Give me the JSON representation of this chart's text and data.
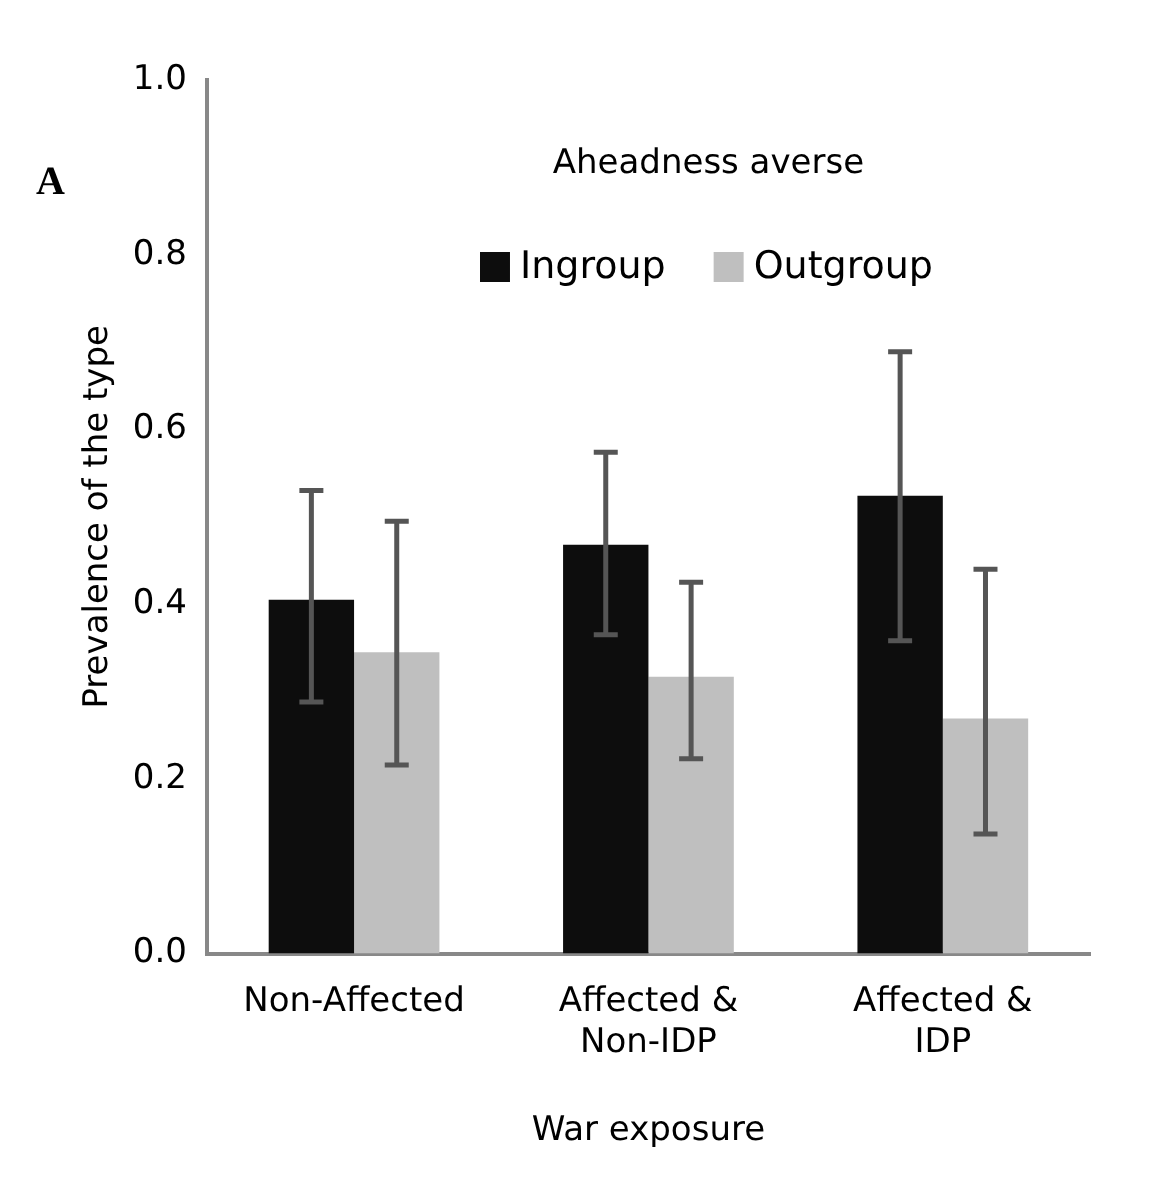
{
  "chart_data": {
    "type": "bar",
    "title": "Aheadness averse",
    "xlabel": "War exposure",
    "ylabel": "Prevalence of the type",
    "categories": [
      "Non-Affected",
      "Affected & Non-IDP",
      "Affected & IDP"
    ],
    "series": [
      {
        "name": "Ingroup",
        "color": "#0d0d0d",
        "values": [
          0.405,
          0.468,
          0.524
        ],
        "errors": [
          [
            0.288,
            0.53
          ],
          [
            0.365,
            0.574
          ],
          [
            0.358,
            0.689
          ]
        ]
      },
      {
        "name": "Outgroup",
        "color": "#bfbfbf",
        "values": [
          0.345,
          0.317,
          0.269
        ],
        "errors": [
          [
            0.216,
            0.495
          ],
          [
            0.223,
            0.425
          ],
          [
            0.137,
            0.44
          ]
        ]
      }
    ],
    "ylim": [
      0,
      1
    ],
    "yticks": [
      {
        "value": 0,
        "label": "0.0"
      },
      {
        "value": 0.2,
        "label": "0.2"
      },
      {
        "value": 0.4,
        "label": "0.4"
      },
      {
        "value": 0.6,
        "label": "0.6"
      },
      {
        "value": 0.8,
        "label": "0.8"
      },
      {
        "value": 1,
        "label": "1.0"
      }
    ],
    "grid": false,
    "legend": "top",
    "annotations": [
      "A"
    ]
  }
}
